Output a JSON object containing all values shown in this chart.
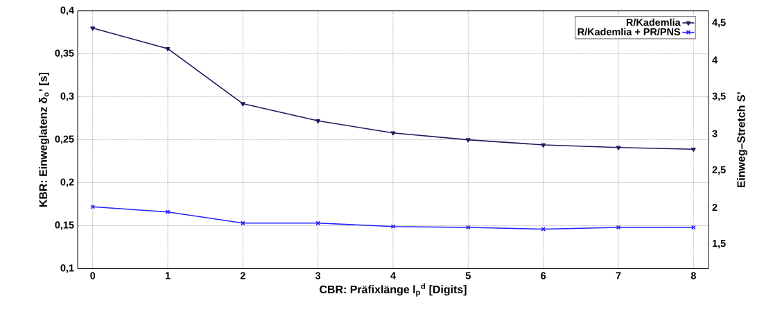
{
  "chart_data": {
    "type": "line",
    "xlabel": "CBR: Präfixlänge l$_{p}$$^{d}$ [Digits]",
    "ylabel": "KBR: Einweglatenz δ$_{o}$’ [s]",
    "y2label": "Einweg–Stretch S’",
    "x": [
      0,
      1,
      2,
      3,
      4,
      5,
      6,
      7,
      8
    ],
    "series": [
      {
        "name": "R/Kademlia",
        "color": "#1c1c5e",
        "marker": "triangle",
        "values": [
          0.38,
          0.356,
          0.292,
          0.272,
          0.258,
          0.25,
          0.244,
          0.241,
          0.239
        ]
      },
      {
        "name": "R/Kademlia + PR/PNS",
        "color": "#2020ff",
        "marker": "cross",
        "values": [
          0.172,
          0.166,
          0.153,
          0.153,
          0.149,
          0.148,
          0.146,
          0.148,
          0.148
        ]
      }
    ],
    "xlim": [
      -0.2,
      8.2
    ],
    "xticks": [
      0,
      1,
      2,
      3,
      4,
      5,
      6,
      7,
      8
    ],
    "ylim": [
      0.1,
      0.4
    ],
    "yticks": [
      {
        "value": 0.1,
        "label": "0,1"
      },
      {
        "value": 0.15,
        "label": "0,15"
      },
      {
        "value": 0.2,
        "label": "0,2"
      },
      {
        "value": 0.25,
        "label": "0,25"
      },
      {
        "value": 0.3,
        "label": "0,3"
      },
      {
        "value": 0.35,
        "label": "0,35"
      },
      {
        "value": 0.4,
        "label": "0,4"
      }
    ],
    "y2lim": [
      1.167,
      4.667
    ],
    "y2ticks": [
      {
        "value": 1.5,
        "label": "1,5"
      },
      {
        "value": 2,
        "label": "2"
      },
      {
        "value": 2.5,
        "label": "2,5"
      },
      {
        "value": 3,
        "label": "3"
      },
      {
        "value": 3.5,
        "label": "3,5"
      },
      {
        "value": 4,
        "label": "4"
      },
      {
        "value": 4.5,
        "label": "4,5"
      }
    ],
    "grid": true,
    "legend": "top right",
    "line_style": "solid"
  }
}
